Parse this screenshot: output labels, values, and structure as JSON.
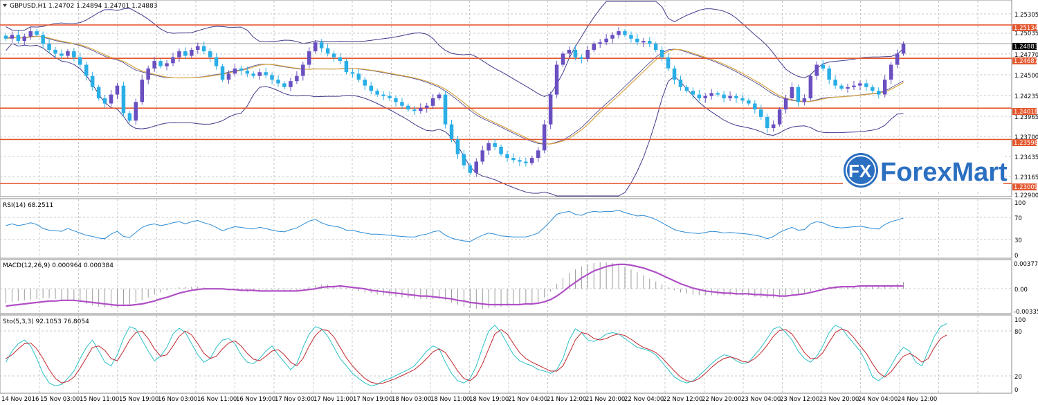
{
  "chart_data": [
    {
      "type": "candlestick",
      "title": "GBPUSD,H1  1.24702 1.24894 1.24701 1.24883",
      "xlabel": "",
      "ylabel": "",
      "ylim": [
        1.2284,
        1.2545
      ],
      "y_ticks": [
        "1.25305",
        "1.25035",
        "1.24770",
        "1.24500",
        "1.24235",
        "1.23965",
        "1.23700",
        "1.23435",
        "1.23165",
        "1.22900"
      ],
      "grid": true,
      "last_price": "1.24883",
      "levels": [
        {
          "label": "1.25134",
          "value": 1.25134
        },
        {
          "label": "1.24687",
          "value": 1.24687
        },
        {
          "label": "1.24018",
          "value": 1.24018
        },
        {
          "label": "1.23598",
          "value": 1.23598
        },
        {
          "label": "1.23009",
          "value": 1.23009
        }
      ],
      "time_labels": [
        "14 Nov 2016",
        "15 Nov 03:00",
        "15 Nov 11:00",
        "15 Nov 19:00",
        "16 Nov 03:00",
        "16 Nov 11:00",
        "16 Nov 19:00",
        "17 Nov 03:00",
        "17 Nov 11:00",
        "17 Nov 19:00",
        "18 Nov 03:00",
        "18 Nov 11:00",
        "18 Nov 19:00",
        "21 Nov 04:00",
        "21 Nov 12:00",
        "21 Nov 20:00",
        "22 Nov 04:00",
        "22 Nov 12:00",
        "22 Nov 20:00",
        "23 Nov 04:00",
        "23 Nov 12:00",
        "23 Nov 20:00",
        "24 Nov 04:00",
        "24 Nov 12:00"
      ],
      "close_series": [
        1.2495,
        1.25,
        1.2492,
        1.2498,
        1.2505,
        1.25,
        1.2488,
        1.248,
        1.2475,
        1.2472,
        1.2478,
        1.247,
        1.246,
        1.2445,
        1.243,
        1.2415,
        1.2408,
        1.242,
        1.2432,
        1.2395,
        1.2385,
        1.241,
        1.244,
        1.2455,
        1.2465,
        1.2458,
        1.2462,
        1.247,
        1.2478,
        1.2472,
        1.248,
        1.2485,
        1.2478,
        1.247,
        1.2458,
        1.244,
        1.2448,
        1.2455,
        1.2452,
        1.2448,
        1.2445,
        1.245,
        1.2446,
        1.244,
        1.2435,
        1.243,
        1.2438,
        1.2445,
        1.246,
        1.2478,
        1.249,
        1.2482,
        1.2475,
        1.247,
        1.2465,
        1.245,
        1.2448,
        1.244,
        1.2432,
        1.2425,
        1.242,
        1.2418,
        1.2415,
        1.241,
        1.2405,
        1.24,
        1.2398,
        1.2402,
        1.2405,
        1.2415,
        1.242,
        1.238,
        1.236,
        1.234,
        1.2325,
        1.2315,
        1.233,
        1.2345,
        1.2355,
        1.235,
        1.234,
        1.2335,
        1.2332,
        1.233,
        1.2328,
        1.2335,
        1.2345,
        1.238,
        1.242,
        1.246,
        1.2475,
        1.248,
        1.247,
        1.2468,
        1.248,
        1.2488,
        1.249,
        1.2495,
        1.25,
        1.2505,
        1.25,
        1.2495,
        1.249,
        1.2492,
        1.2488,
        1.248,
        1.247,
        1.2455,
        1.244,
        1.243,
        1.2425,
        1.242,
        1.2415,
        1.2418,
        1.2422,
        1.242,
        1.2415,
        1.2418,
        1.2415,
        1.2412,
        1.2408,
        1.24,
        1.239,
        1.2375,
        1.238,
        1.24,
        1.2415,
        1.243,
        1.241,
        1.2415,
        1.2445,
        1.246,
        1.2455,
        1.244,
        1.2432,
        1.2428,
        1.243,
        1.2432,
        1.2435,
        1.243,
        1.2425,
        1.242,
        1.244,
        1.246,
        1.2475,
        1.2488
      ]
    },
    {
      "type": "line",
      "title": "RSI(14) 68.2511",
      "ylim": [
        0,
        100
      ],
      "y_ticks": [
        "100",
        "70",
        "30",
        "0"
      ],
      "series": [
        {
          "values": [
            55,
            58,
            55,
            57,
            60,
            57,
            50,
            47,
            46,
            45,
            50,
            46,
            42,
            38,
            36,
            33,
            32,
            40,
            45,
            36,
            34,
            43,
            52,
            56,
            58,
            55,
            57,
            60,
            62,
            58,
            62,
            64,
            60,
            57,
            52,
            46,
            50,
            53,
            52,
            50,
            49,
            52,
            50,
            47,
            45,
            44,
            48,
            51,
            57,
            63,
            66,
            60,
            56,
            54,
            52,
            47,
            47,
            44,
            42,
            40,
            40,
            39,
            38,
            37,
            36,
            35,
            35,
            38,
            40,
            44,
            46,
            38,
            33,
            30,
            28,
            27,
            33,
            38,
            42,
            40,
            37,
            36,
            35,
            35,
            35,
            38,
            42,
            52,
            63,
            75,
            78,
            80,
            75,
            73,
            78,
            80,
            79,
            80,
            80,
            82,
            78,
            75,
            72,
            73,
            70,
            66,
            60,
            54,
            48,
            45,
            43,
            42,
            41,
            43,
            45,
            44,
            42,
            43,
            42,
            41,
            40,
            38,
            36,
            32,
            36,
            43,
            48,
            52,
            47,
            48,
            58,
            62,
            60,
            55,
            52,
            51,
            52,
            53,
            54,
            52,
            50,
            49,
            57,
            62,
            65,
            68.25
          ]
        }
      ]
    },
    {
      "type": "bar",
      "title": "MACD(12,26,9) 0.000964 0.000384",
      "ylim": [
        -0.003357,
        0.003779
      ],
      "y_ticks": [
        "0.003779",
        "0.00",
        "-0.003357"
      ],
      "series": [
        {
          "values": [
            -0.002,
            -0.0018,
            -0.0017,
            -0.0016,
            -0.0015,
            -0.0014,
            -0.0013,
            -0.0013,
            -0.0014,
            -0.0015,
            -0.0016,
            -0.0017,
            -0.0019,
            -0.0021,
            -0.0023,
            -0.0025,
            -0.0026,
            -0.0026,
            -0.0025,
            -0.0024,
            -0.0022,
            -0.0019,
            -0.0016,
            -0.0012,
            -0.0008,
            -0.0005,
            -0.0002,
            0.0,
            0.0002,
            0.0003,
            0.0003,
            0.0003,
            0.0002,
            0.0001,
            0.0,
            -0.0001,
            -0.0002,
            -0.0003,
            -0.0003,
            -0.0004,
            -0.0004,
            -0.0004,
            -0.0004,
            -0.0004,
            -0.0004,
            -0.0004,
            -0.0003,
            -0.0002,
            0.0,
            0.0003,
            0.0005,
            0.0006,
            0.0006,
            0.0005,
            0.0003,
            0.0001,
            -0.0001,
            -0.0003,
            -0.0005,
            -0.0006,
            -0.0008,
            -0.0009,
            -0.001,
            -0.0011,
            -0.0012,
            -0.0013,
            -0.0014,
            -0.0014,
            -0.0014,
            -0.0014,
            -0.0014,
            -0.0016,
            -0.0019,
            -0.0022,
            -0.0025,
            -0.0027,
            -0.0028,
            -0.0028,
            -0.0027,
            -0.0026,
            -0.0025,
            -0.0024,
            -0.0023,
            -0.0022,
            -0.0021,
            -0.002,
            -0.0018,
            -0.0012,
            -0.0004,
            0.0007,
            0.0015,
            0.0022,
            0.0027,
            0.0031,
            0.0034,
            0.0036,
            0.0037,
            0.0037,
            0.0036,
            0.0034,
            0.0031,
            0.0027,
            0.0023,
            0.0019,
            0.0014,
            0.001,
            0.0006,
            0.0002,
            -0.0002,
            -0.0005,
            -0.0007,
            -0.0008,
            -0.0009,
            -0.0009,
            -0.0009,
            -0.0009,
            -0.0009,
            -0.0009,
            -0.0009,
            -0.0009,
            -0.001,
            -0.0011,
            -0.0012,
            -0.0013,
            -0.0013,
            -0.0012,
            -0.0011,
            -0.0009,
            -0.0007,
            -0.0006,
            -0.0003,
            0.0,
            0.0002,
            0.0003,
            0.0004,
            0.0004,
            0.0004,
            0.0004,
            0.0004,
            0.0004,
            0.0004,
            0.0003,
            0.0004,
            0.0005,
            0.0007,
            0.00096
          ]
        },
        {
          "values": [
            -0.0024,
            -0.0023,
            -0.0022,
            -0.0021,
            -0.002,
            -0.0019,
            -0.0018,
            -0.0017,
            -0.0017,
            -0.0016,
            -0.0016,
            -0.0016,
            -0.0017,
            -0.0018,
            -0.0019,
            -0.002,
            -0.0021,
            -0.0022,
            -0.0023,
            -0.0023,
            -0.0023,
            -0.0022,
            -0.0021,
            -0.0019,
            -0.0017,
            -0.0014,
            -0.0012,
            -0.0009,
            -0.0006,
            -0.0004,
            -0.0002,
            -0.0001,
            0.0,
            0.0,
            0.0,
            0.0,
            -0.0001,
            -0.0001,
            -0.0002,
            -0.0002,
            -0.0002,
            -0.0003,
            -0.0003,
            -0.0003,
            -0.0003,
            -0.0003,
            -0.0003,
            -0.0003,
            -0.0002,
            -0.0001,
            0.0,
            0.0002,
            0.0003,
            0.0003,
            0.0004,
            0.0003,
            0.0002,
            0.0001,
            0.0,
            -0.0002,
            -0.0003,
            -0.0004,
            -0.0005,
            -0.0006,
            -0.0007,
            -0.0008,
            -0.0009,
            -0.001,
            -0.001,
            -0.0011,
            -0.0012,
            -0.0013,
            -0.0014,
            -0.0016,
            -0.0017,
            -0.0019,
            -0.002,
            -0.0021,
            -0.0022,
            -0.0022,
            -0.0022,
            -0.0022,
            -0.0022,
            -0.0022,
            -0.0021,
            -0.0021,
            -0.002,
            -0.0018,
            -0.0015,
            -0.001,
            -0.0004,
            0.0003,
            0.0009,
            0.0015,
            0.002,
            0.0025,
            0.0028,
            0.0031,
            0.0033,
            0.0034,
            0.0034,
            0.0033,
            0.0031,
            0.0029,
            0.0026,
            0.0023,
            0.0019,
            0.0015,
            0.0011,
            0.0007,
            0.0004,
            0.0001,
            -0.0001,
            -0.0003,
            -0.0004,
            -0.0005,
            -0.0006,
            -0.0006,
            -0.0007,
            -0.0007,
            -0.0007,
            -0.0008,
            -0.0008,
            -0.0009,
            -0.0009,
            -0.001,
            -0.001,
            -0.0009,
            -0.0008,
            -0.0007,
            -0.0005,
            -0.0003,
            -0.0001,
            0.0001,
            0.0002,
            0.0003,
            0.0003,
            0.0003,
            0.0004,
            0.0004,
            0.0004,
            0.0004,
            0.0004,
            0.0004,
            0.0004,
            0.000384
          ]
        }
      ]
    },
    {
      "type": "line",
      "title": "Sto(5,3,3) 92.1053 76.8054",
      "ylim": [
        0,
        100
      ],
      "y_ticks": [
        "100",
        "80",
        "20",
        "0"
      ],
      "series": [
        {
          "values": [
            40,
            55,
            65,
            70,
            62,
            45,
            25,
            12,
            8,
            10,
            18,
            28,
            45,
            60,
            70,
            55,
            40,
            35,
            50,
            72,
            88,
            85,
            70,
            55,
            42,
            48,
            60,
            78,
            86,
            80,
            65,
            50,
            40,
            45,
            60,
            70,
            72,
            65,
            50,
            40,
            38,
            45,
            55,
            62,
            50,
            40,
            30,
            38,
            60,
            78,
            88,
            85,
            75,
            60,
            45,
            35,
            25,
            18,
            12,
            8,
            10,
            15,
            18,
            22,
            26,
            30,
            35,
            45,
            55,
            62,
            58,
            40,
            25,
            15,
            12,
            18,
            35,
            60,
            82,
            90,
            80,
            65,
            50,
            42,
            38,
            35,
            30,
            28,
            25,
            30,
            45,
            70,
            85,
            80,
            70,
            68,
            72,
            78,
            80,
            78,
            72,
            66,
            60,
            58,
            55,
            50,
            40,
            30,
            20,
            15,
            12,
            15,
            22,
            30,
            38,
            45,
            50,
            48,
            42,
            38,
            40,
            50,
            60,
            72,
            85,
            88,
            80,
            70,
            55,
            45,
            40,
            48,
            62,
            80,
            90,
            86,
            75,
            65,
            55,
            40,
            20,
            15,
            22,
            35,
            50,
            60,
            55,
            40,
            35,
            55,
            75,
            88,
            92.1
          ]
        },
        {
          "values": [
            45,
            50,
            58,
            65,
            66,
            58,
            45,
            30,
            18,
            12,
            14,
            20,
            32,
            46,
            60,
            62,
            56,
            45,
            42,
            55,
            70,
            80,
            82,
            72,
            58,
            48,
            50,
            62,
            75,
            82,
            77,
            65,
            52,
            45,
            48,
            58,
            66,
            69,
            62,
            52,
            44,
            42,
            48,
            55,
            57,
            50,
            40,
            35,
            45,
            62,
            76,
            84,
            83,
            74,
            60,
            46,
            35,
            26,
            18,
            13,
            11,
            12,
            15,
            18,
            22,
            26,
            30,
            37,
            45,
            54,
            58,
            53,
            41,
            28,
            18,
            15,
            22,
            38,
            58,
            78,
            84,
            78,
            65,
            53,
            45,
            40,
            36,
            32,
            28,
            28,
            35,
            52,
            70,
            80,
            78,
            72,
            70,
            72,
            76,
            78,
            76,
            71,
            65,
            60,
            57,
            53,
            46,
            37,
            28,
            20,
            15,
            14,
            18,
            25,
            33,
            40,
            45,
            47,
            45,
            41,
            40,
            45,
            53,
            63,
            75,
            83,
            84,
            78,
            66,
            53,
            45,
            45,
            53,
            67,
            80,
            85,
            82,
            73,
            62,
            52,
            38,
            26,
            20,
            27,
            38,
            48,
            52,
            47,
            40,
            45,
            60,
            72,
            76.8
          ]
        }
      ]
    }
  ],
  "logo": {
    "fx": "FX",
    "text": "ForexMart"
  },
  "colors": {
    "bull": "#6a4fc1",
    "bear": "#29aee6",
    "level": "#e4572e",
    "bands": "#3e3a8a",
    "ma": "#d9a441",
    "rsi": "#2b8ad4",
    "macd_line": "#b04fc6",
    "macd_hist": "#9a9a9a",
    "sto_main": "#2ac0c8",
    "sto_signal": "#c0272d",
    "grid": "#c8c8c8"
  }
}
